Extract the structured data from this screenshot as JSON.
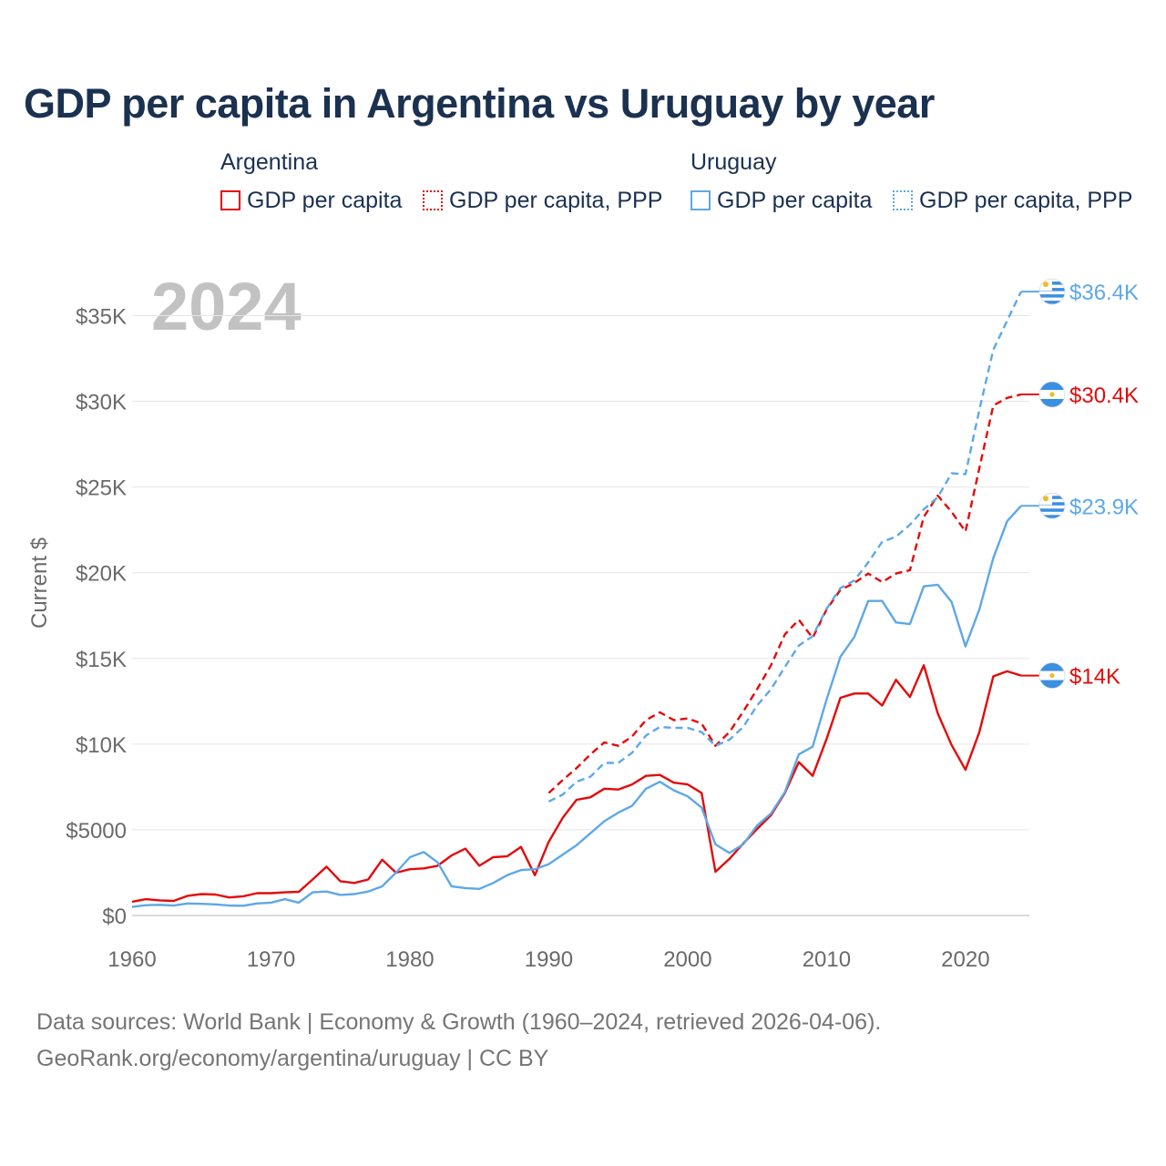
{
  "title": "GDP per capita in Argentina vs Uruguay by year",
  "legend": {
    "groups": [
      {
        "country": "Argentina",
        "items": [
          "GDP per capita",
          "GDP per capita, PPP"
        ]
      },
      {
        "country": "Uruguay",
        "items": [
          "GDP per capita",
          "GDP per capita, PPP"
        ]
      }
    ]
  },
  "colors": {
    "argentina": "#e30a0a",
    "uruguay": "#5da8e8",
    "text": "#1b3150",
    "axis": "#6a6a6a",
    "year": "#c2c2c2"
  },
  "footer": {
    "line1": "Data sources: World Bank | Economy & Growth (1960–2024, retrieved 2026-04-06).",
    "line2": "GeoRank.org/economy/argentina/uruguay | CC BY"
  },
  "chart_data": {
    "type": "line",
    "title": "GDP per capita in Argentina vs Uruguay by year",
    "year_label": "2024",
    "xlabel": "",
    "ylabel": "Current $",
    "xlim": [
      1960,
      2024.6
    ],
    "ylim": [
      0,
      38000
    ],
    "x_ticks": [
      1960,
      1970,
      1980,
      1990,
      2000,
      2010,
      2020
    ],
    "x_tick_labels": [
      "1960",
      "1970",
      "1980",
      "1990",
      "2000",
      "2010",
      "2020"
    ],
    "y_ticks": [
      0,
      5000,
      10000,
      15000,
      20000,
      25000,
      30000,
      35000
    ],
    "y_tick_labels": [
      "$0",
      "$5000",
      "$10K",
      "$15K",
      "$20K",
      "$25K",
      "$30K",
      "$35K"
    ],
    "series": [
      {
        "name": "Argentina GDP per capita",
        "country": "Argentina",
        "style": "solid",
        "start_year": 1960,
        "end_label": "$14K",
        "values": [
          800,
          950,
          880,
          850,
          1150,
          1250,
          1220,
          1050,
          1120,
          1300,
          1300,
          1350,
          1380,
          2100,
          2850,
          2000,
          1900,
          2100,
          3250,
          2500,
          2700,
          2750,
          2900,
          3500,
          3900,
          2900,
          3400,
          3450,
          4000,
          2350,
          4300,
          5700,
          6750,
          6900,
          7400,
          7350,
          7650,
          8150,
          8200,
          7750,
          7650,
          7150,
          2550,
          3300,
          4200,
          5050,
          5850,
          7150,
          8950,
          8150,
          10300,
          12700,
          12950,
          12950,
          12250,
          13750,
          12750,
          14600,
          11800,
          9950,
          8500,
          10700,
          13950,
          14250,
          14000
        ]
      },
      {
        "name": "Argentina GDP per capita, PPP",
        "country": "Argentina",
        "style": "dashed",
        "start_year": 1990,
        "end_label": "$30.4K",
        "values": [
          7150,
          7900,
          8600,
          9400,
          10100,
          9900,
          10450,
          11400,
          11850,
          11400,
          11500,
          11200,
          9900,
          10700,
          11900,
          13200,
          14600,
          16400,
          17250,
          16200,
          17850,
          19000,
          19400,
          19950,
          19450,
          19950,
          20150,
          23250,
          24500,
          23550,
          22400,
          26100,
          29750,
          30200,
          30400
        ]
      },
      {
        "name": "Uruguay GDP per capita",
        "country": "Uruguay",
        "style": "solid",
        "start_year": 1960,
        "end_label": "$23.9K",
        "values": [
          500,
          600,
          620,
          580,
          700,
          680,
          650,
          580,
          570,
          700,
          750,
          950,
          750,
          1350,
          1400,
          1200,
          1250,
          1400,
          1700,
          2500,
          3400,
          3700,
          3100,
          1700,
          1600,
          1550,
          1900,
          2350,
          2650,
          2700,
          3000,
          3550,
          4100,
          4800,
          5500,
          6000,
          6400,
          7400,
          7800,
          7300,
          6950,
          6300,
          4150,
          3650,
          4150,
          5250,
          5950,
          7200,
          9400,
          9850,
          12600,
          15100,
          16250,
          18350,
          18350,
          17100,
          17000,
          19200,
          19300,
          18300,
          15700,
          17850,
          20850,
          23000,
          23900
        ]
      },
      {
        "name": "Uruguay GDP per capita, PPP",
        "country": "Uruguay",
        "style": "dashed",
        "start_year": 1990,
        "end_label": "$36.4K",
        "values": [
          6650,
          7050,
          7800,
          8100,
          8900,
          8900,
          9500,
          10500,
          11000,
          10950,
          10950,
          10700,
          9900,
          10250,
          11000,
          12250,
          13200,
          14500,
          15750,
          16300,
          17900,
          19100,
          19550,
          20600,
          21800,
          22100,
          22800,
          23700,
          24400,
          25800,
          25750,
          29500,
          33000,
          34700,
          36400
        ]
      }
    ]
  }
}
